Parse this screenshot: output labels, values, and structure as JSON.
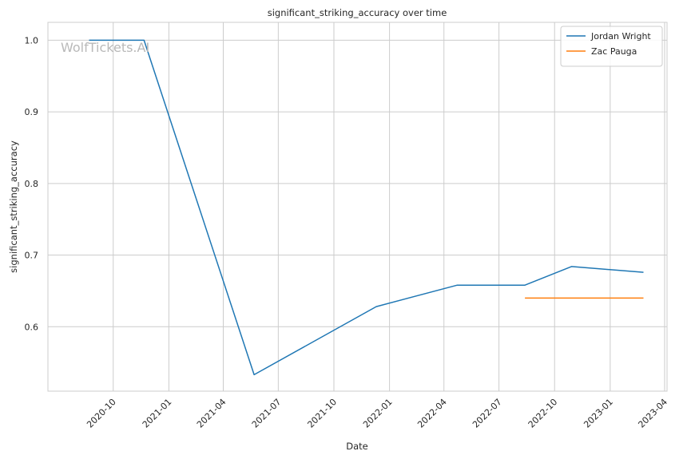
{
  "chart_data": {
    "type": "line",
    "title": "significant_striking_accuracy over time",
    "xlabel": "Date",
    "ylabel": "significant_striking_accuracy",
    "x_type": "date",
    "xlim": [
      "2020-06-15",
      "2023-04-05"
    ],
    "ylim": [
      0.51,
      1.025
    ],
    "x_ticks": [
      "2020-10",
      "2021-01",
      "2021-04",
      "2021-07",
      "2021-10",
      "2022-01",
      "2022-04",
      "2022-07",
      "2022-10",
      "2023-01",
      "2023-04"
    ],
    "y_ticks": [
      0.6,
      0.7,
      0.8,
      0.9,
      1.0
    ],
    "y_tick_labels": [
      "0.6",
      "0.7",
      "0.8",
      "0.9",
      "1.0"
    ],
    "grid": true,
    "legend_position": "top-right",
    "watermark": "WolfTickets.AI",
    "series": [
      {
        "name": "Jordan Wright",
        "color": "#1f77b4",
        "points": [
          {
            "x": "2020-08-22",
            "y": 1.0
          },
          {
            "x": "2020-11-21",
            "y": 1.0
          },
          {
            "x": "2021-05-22",
            "y": 0.533
          },
          {
            "x": "2021-12-10",
            "y": 0.628
          },
          {
            "x": "2022-04-23",
            "y": 0.658
          },
          {
            "x": "2022-08-13",
            "y": 0.658
          },
          {
            "x": "2022-10-29",
            "y": 0.684
          },
          {
            "x": "2023-02-25",
            "y": 0.676
          }
        ]
      },
      {
        "name": "Zac Pauga",
        "color": "#ff7f0e",
        "points": [
          {
            "x": "2022-08-13",
            "y": 0.64
          },
          {
            "x": "2023-02-25",
            "y": 0.64
          }
        ]
      }
    ]
  }
}
